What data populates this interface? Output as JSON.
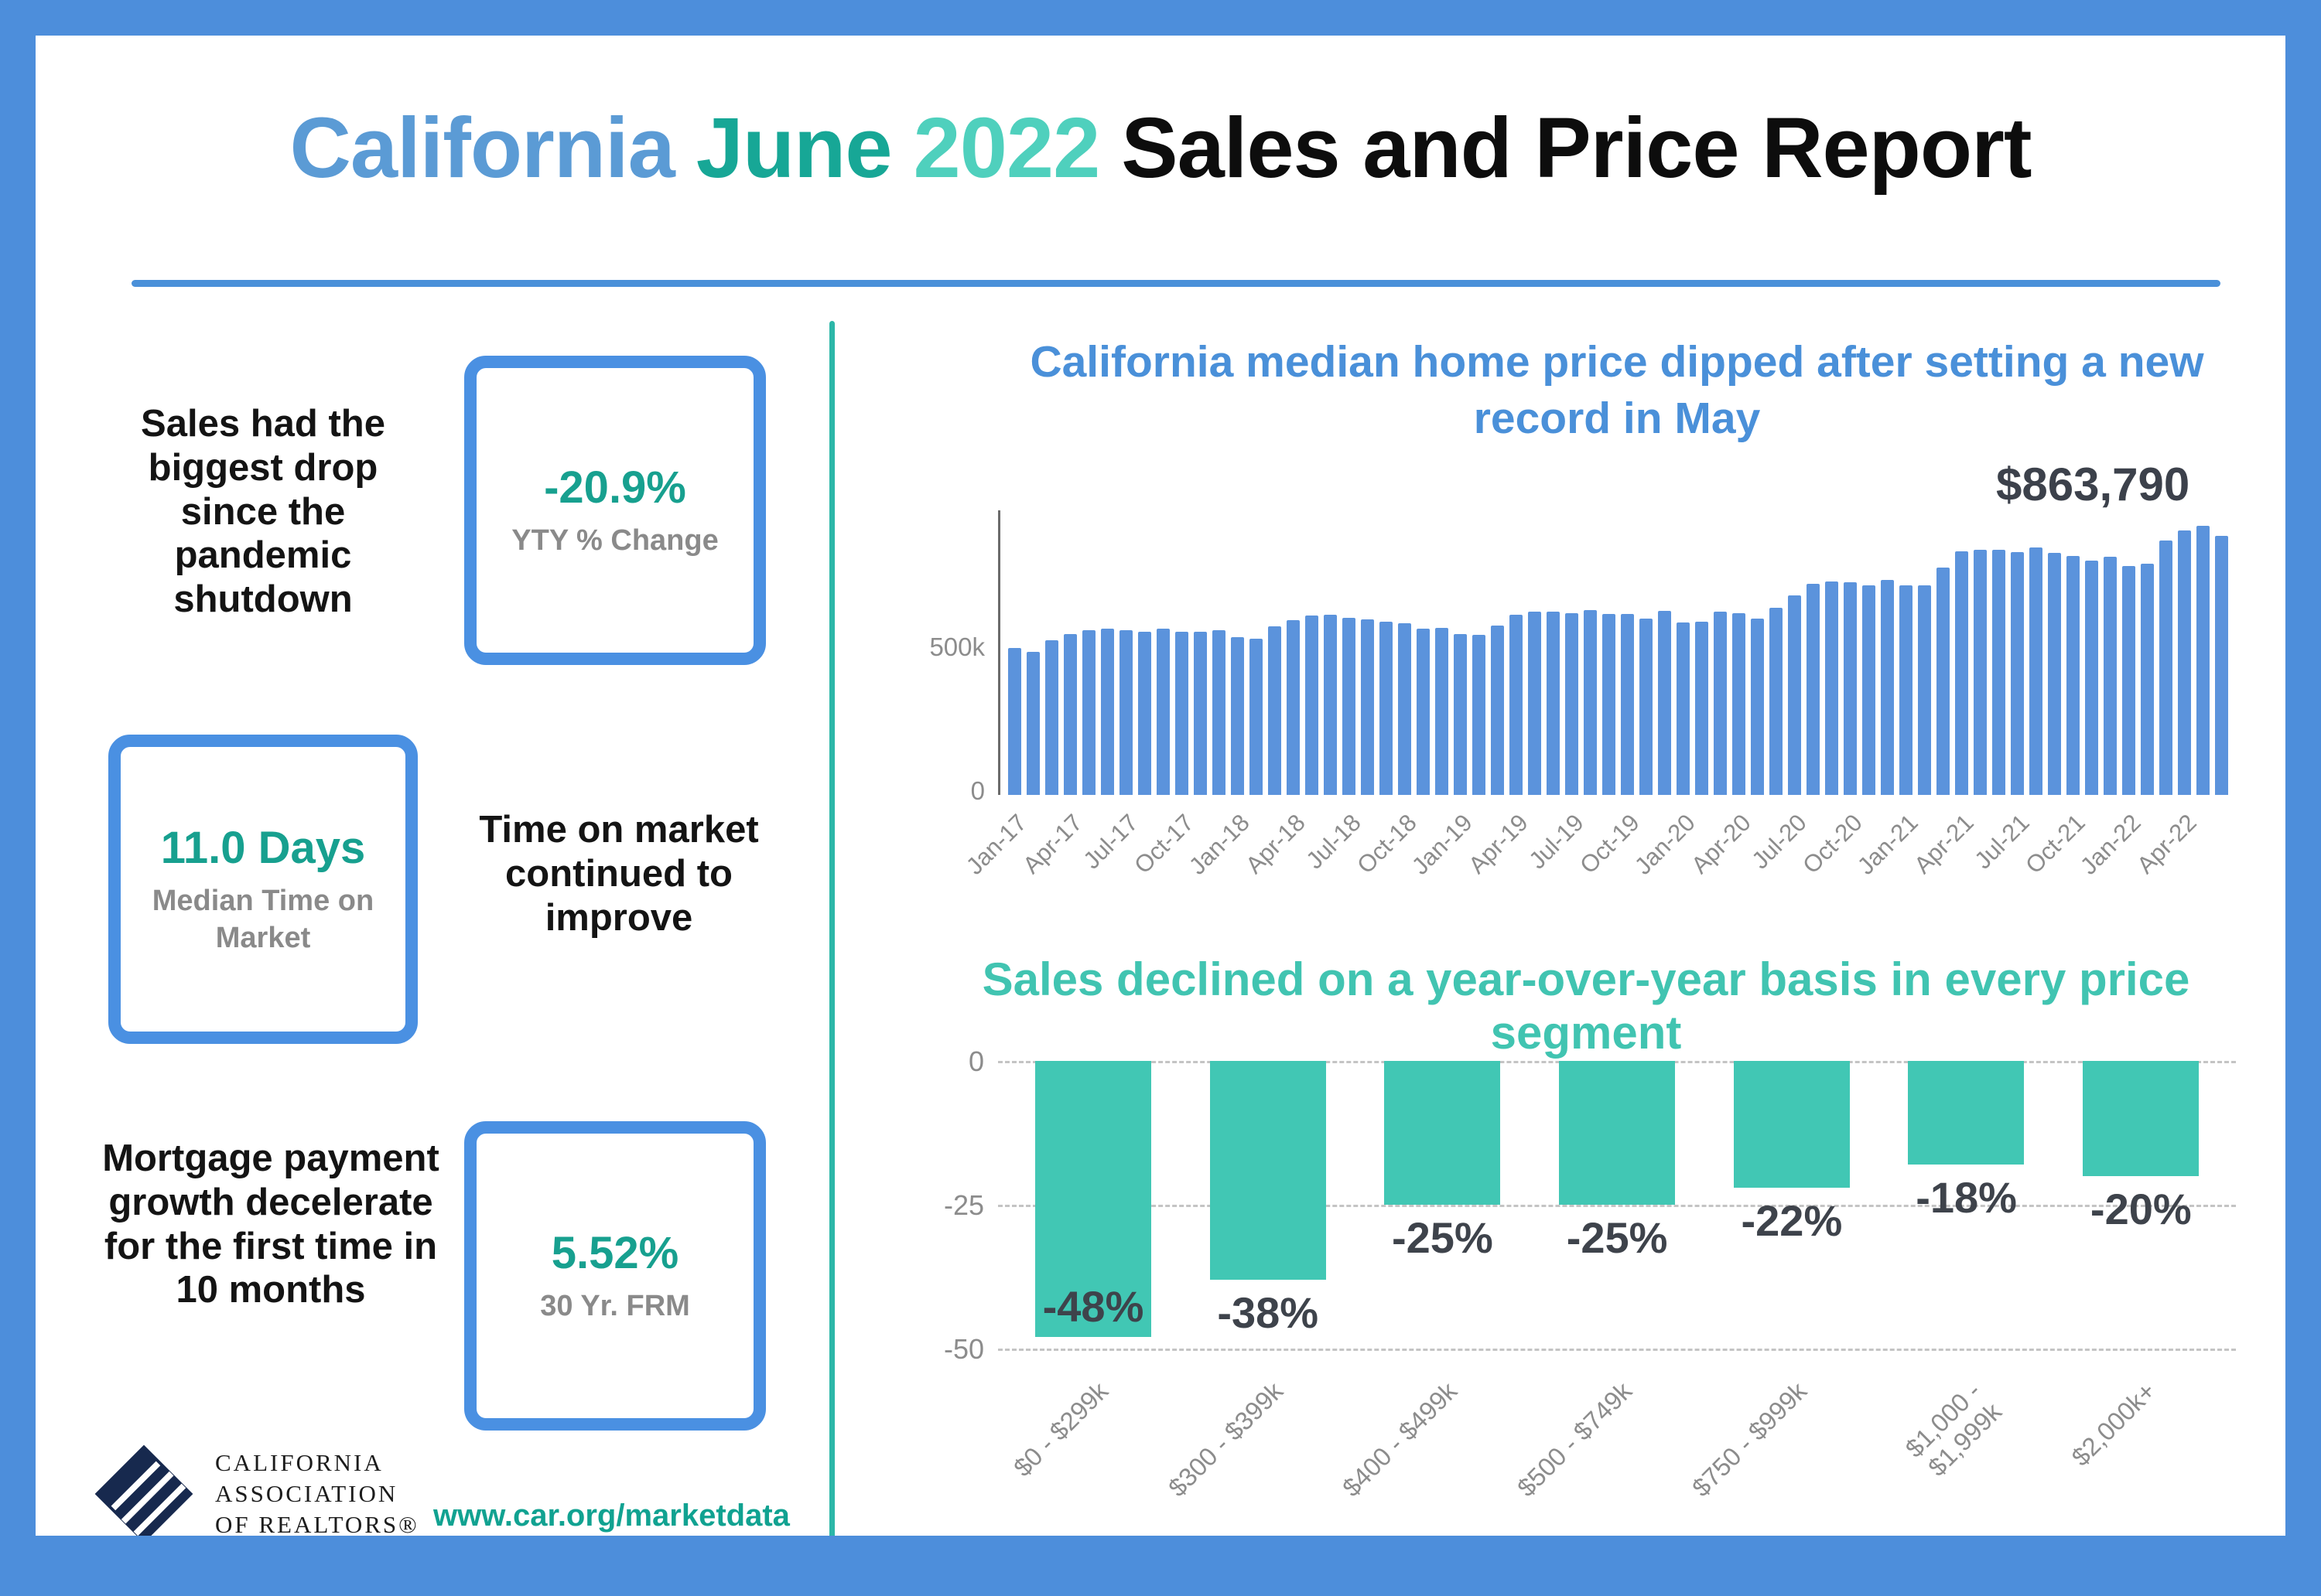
{
  "page": {
    "title_part1": "California",
    "title_part2": "June",
    "title_part3": "2022",
    "title_part4": "Sales and Price Report"
  },
  "colors": {
    "frame_blue": "#4d8edb",
    "title_blue": "#5b9bd5",
    "title_teal": "#17a796",
    "title_mint": "#4fd0bd",
    "bar_blue": "#5b93dc",
    "bar_teal": "#41c7b4",
    "value_teal": "#17a08f",
    "gray_text": "#8c8c8c"
  },
  "left_panel": {
    "stat1": {
      "text": "Sales had the biggest drop since the pandemic shutdown",
      "value": "-20.9%",
      "label": "YTY % Change"
    },
    "stat2": {
      "value": "11.0 Days",
      "label": "Median Time on Market",
      "text": "Time on market continued to improve"
    },
    "stat3": {
      "text": "Mortgage payment growth decelerate for the first time in 10 months",
      "value": "5.52%",
      "label": "30 Yr. FRM"
    },
    "logo": {
      "line1": "CALIFORNIA",
      "line2": "ASSOCIATION",
      "line3": "OF REALTORS®"
    },
    "url": "www.car.org/marketdata"
  },
  "chart_data": [
    {
      "type": "bar",
      "title": "California median home price dipped after setting a new record in May",
      "annotation": "$863,790",
      "units": "$ thousands (median home price)",
      "x": [
        "Jan-17",
        "Feb-17",
        "Mar-17",
        "Apr-17",
        "May-17",
        "Jun-17",
        "Jul-17",
        "Aug-17",
        "Sep-17",
        "Oct-17",
        "Nov-17",
        "Dec-17",
        "Jan-18",
        "Feb-18",
        "Mar-18",
        "Apr-18",
        "May-18",
        "Jun-18",
        "Jul-18",
        "Aug-18",
        "Sep-18",
        "Oct-18",
        "Nov-18",
        "Dec-18",
        "Jan-19",
        "Feb-19",
        "Mar-19",
        "Apr-19",
        "May-19",
        "Jun-19",
        "Jul-19",
        "Aug-19",
        "Sep-19",
        "Oct-19",
        "Nov-19",
        "Dec-19",
        "Jan-20",
        "Feb-20",
        "Mar-20",
        "Apr-20",
        "May-20",
        "Jun-20",
        "Jul-20",
        "Aug-20",
        "Sep-20",
        "Oct-20",
        "Nov-20",
        "Dec-20",
        "Jan-21",
        "Feb-21",
        "Mar-21",
        "Apr-21",
        "May-21",
        "Jun-21",
        "Jul-21",
        "Aug-21",
        "Sep-21",
        "Oct-21",
        "Nov-21",
        "Dec-21",
        "Jan-22",
        "Feb-22",
        "Mar-22",
        "Apr-22",
        "May-22",
        "Jun-22"
      ],
      "values": [
        490,
        479,
        517,
        537,
        550,
        555,
        549,
        546,
        555,
        546,
        546,
        549,
        527,
        522,
        564,
        584,
        600,
        602,
        591,
        586,
        578,
        572,
        554,
        557,
        538,
        534,
        565,
        602,
        611,
        611,
        607,
        617,
        605,
        605,
        589,
        615,
        575,
        579,
        612,
        606,
        588,
        626,
        666,
        706,
        712,
        711,
        699,
        717,
        699,
        699,
        758,
        814,
        818,
        819,
        811,
        827,
        808,
        798,
        782,
        796,
        765,
        771,
        849,
        884,
        898,
        864
      ],
      "x_tick_every": 3,
      "yticks": [
        "500k",
        "0"
      ],
      "ylim": [
        0,
        950
      ],
      "bar_color": "#5b93dc",
      "legend": "none",
      "grid": "off"
    },
    {
      "type": "bar",
      "title": "Sales declined on a year-over-year basis in every price segment",
      "units": "percent change year-over-year",
      "categories": [
        "$0 - $299k",
        "$300 - $399k",
        "$400 - $499k",
        "$500 - $749k",
        "$750 - $999k",
        "$1,000 - $1,999k",
        "$2,000k+"
      ],
      "values": [
        -48,
        -38,
        -25,
        -25,
        -22,
        -18,
        -20
      ],
      "labels": [
        "-48%",
        "-38%",
        "-25%",
        "-25%",
        "-22%",
        "-18%",
        "-20%"
      ],
      "yticks": [
        "0",
        "-25",
        "-50"
      ],
      "ylim": [
        -50,
        0
      ],
      "bar_color": "#41c7b4",
      "legend": "none",
      "grid": "dashed horizontal"
    }
  ]
}
